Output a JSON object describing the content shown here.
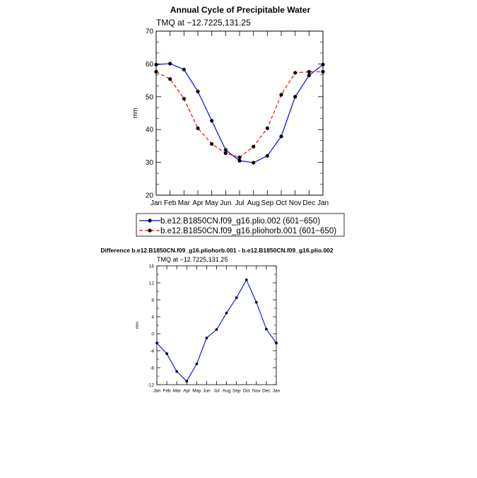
{
  "chart_data": [
    {
      "type": "line",
      "title": "Annual Cycle of Precipitable Water",
      "subtitle": "TMQ at −12.7225,131.25",
      "xlabel": "",
      "ylabel": "mm",
      "categories": [
        "Jan",
        "Feb",
        "Mar",
        "Apr",
        "May",
        "Jun",
        "Jul",
        "Aug",
        "Sep",
        "Oct",
        "Nov",
        "Dec",
        "Jan"
      ],
      "ylim": [
        20,
        70
      ],
      "yticks": [
        20,
        30,
        40,
        50,
        60,
        70
      ],
      "yminor": 2,
      "grid": false,
      "legend": "below",
      "series": [
        {
          "name": "b.e12.B1850CN.f09_g16.plio.002 (601−650)",
          "color": "#0000ff",
          "dash": "solid",
          "values": [
            59.8,
            60.1,
            58.3,
            51.6,
            42.7,
            33.8,
            30.5,
            29.9,
            32.0,
            37.9,
            50.0,
            56.5,
            59.8
          ]
        },
        {
          "name": "b.e12.B1850CN.f09_g16.pliohorb.001 (601−650)",
          "color": "#ff0000",
          "dash": "dashed",
          "values": [
            57.6,
            55.4,
            49.4,
            40.4,
            35.6,
            32.8,
            31.5,
            34.8,
            40.4,
            50.6,
            57.3,
            57.6,
            57.6
          ]
        }
      ]
    },
    {
      "type": "line",
      "title": "Difference b.e12.B1850CN.f09_g16.pliohorb.001 - b.e12.B1850CN.f09_g16.plio.002",
      "subtitle": "TMQ at −12.7225,131.25",
      "xlabel": "",
      "ylabel": "mm",
      "categories": [
        "Jan",
        "Feb",
        "Mar",
        "Apr",
        "May",
        "Jun",
        "Jul",
        "Aug",
        "Sep",
        "Oct",
        "Nov",
        "Dec",
        "Jan"
      ],
      "ylim": [
        -12,
        16
      ],
      "yticks": [
        -12,
        -8,
        -4,
        0,
        4,
        8,
        12,
        16
      ],
      "yminor": 1,
      "grid": false,
      "series": [
        {
          "name": "difference",
          "color": "#0000ff",
          "dash": "solid",
          "values": [
            -2.2,
            -4.7,
            -8.9,
            -11.2,
            -7.1,
            -1.0,
            1.0,
            4.9,
            8.5,
            12.7,
            7.4,
            1.1,
            -2.2
          ]
        }
      ]
    }
  ]
}
